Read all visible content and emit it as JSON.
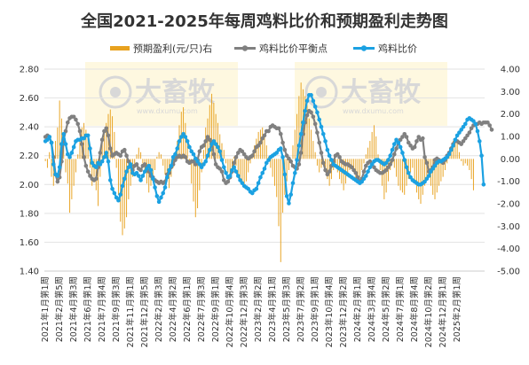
{
  "chart_data": {
    "type": "bar+line",
    "title": "全国2021-2025年每周鸡料比价和预期盈利走势图",
    "legend": {
      "placement": "top",
      "items": [
        {
          "name": "预期盈利(元/只)右",
          "kind": "bar",
          "color": "#E8A21F"
        },
        {
          "name": "鸡料比价平衡点",
          "kind": "line-marker",
          "color": "#808080"
        },
        {
          "name": "鸡料比价",
          "kind": "line-marker",
          "color": "#1BA1E2"
        }
      ]
    },
    "watermark": {
      "brand": "大畜牧",
      "url": "www.dxumu.com"
    },
    "y_left": {
      "min": 1.4,
      "max": 2.8,
      "step": 0.2,
      "ticks": [
        "1.40",
        "1.60",
        "1.80",
        "2.00",
        "2.20",
        "2.40",
        "2.60",
        "2.80"
      ]
    },
    "y_right": {
      "min": -5.0,
      "max": 4.0,
      "step": 1.0,
      "ticks": [
        "-5.00",
        "-4.00",
        "-3.00",
        "-2.00",
        "-1.00",
        "0.00",
        "1.00",
        "2.00",
        "3.00",
        "4.00"
      ]
    },
    "x_tick_labels": [
      "2021年1月第1周",
      "2021年2月第5周",
      "2021年4月第3周",
      "2021年6月第1周",
      "2021年7月第4周",
      "2021年9月第3周",
      "2021年11月第1周",
      "2021年12月第5周",
      "2022年2月第3周",
      "2022年4月第2周",
      "2022年6月第1周",
      "2022年7月第3周",
      "2022年9月第1周",
      "2022年10月第4周",
      "2022年12月第3周",
      "2023年2月第2周",
      "2023年4月第1周",
      "2023年5月第3周",
      "2023年7月第2周",
      "2023年9月第1周",
      "2023年10月第4周",
      "2023年12月第2周",
      "2024年2月第1周",
      "2024年3月第4周",
      "2024年5月第2周",
      "2024年7月第1周",
      "2024年8月第4周",
      "2024年10月第2周",
      "2024年12月第1周",
      "2025年2月第1周"
    ],
    "x_tick_interval": 7,
    "series": [
      {
        "name": "预期盈利(元/只)右",
        "axis": "right",
        "values": [
          -0.1,
          -0.4,
          0.3,
          -0.8,
          -1.2,
          0.8,
          1.4,
          2.6,
          1.8,
          0.6,
          -0.6,
          -1.1,
          -2.4,
          -1.8,
          -1.2,
          -0.6,
          0.2,
          0.9,
          1.4,
          1.6,
          1.3,
          0.9,
          -0.4,
          -1.2,
          -0.8,
          -1.4,
          -2.1,
          -0.8,
          0.9,
          1.3,
          1.6,
          2.0,
          2.2,
          1.9,
          1.2,
          -0.4,
          -1.6,
          -2.8,
          -3.4,
          -3.1,
          -2.6,
          -1.8,
          -1.2,
          -0.8,
          -0.4,
          0.2,
          0.5,
          0.3,
          -0.2,
          -0.6,
          -1.1,
          -1.5,
          -1.2,
          -0.9,
          -0.5,
          0.1,
          0.3,
          0.2,
          -0.3,
          -0.7,
          -1.0,
          -1.3,
          -0.8,
          -0.4,
          0.2,
          0.8,
          1.5,
          2.1,
          2.3,
          1.6,
          0.9,
          -0.2,
          -1.1,
          -1.9,
          -2.6,
          -2.2,
          -1.4,
          -0.6,
          0.4,
          1.4,
          1.8,
          2.4,
          2.9,
          2.5,
          2.0,
          1.6,
          1.1,
          0.7,
          0.4,
          -0.2,
          -0.6,
          -0.8,
          -0.4,
          0.1,
          -0.3,
          -0.7,
          -0.9,
          -1.1,
          -1.3,
          -1.0,
          -0.6,
          -0.2,
          0.2,
          0.6,
          0.9,
          1.2,
          1.3,
          1.4,
          1.1,
          0.6,
          0.1,
          -0.4,
          -0.8,
          -1.2,
          -1.7,
          -3.0,
          -4.6,
          -2.4,
          -1.6,
          -1.0,
          -0.5,
          0.0,
          0.6,
          1.3,
          2.0,
          2.8,
          3.4,
          3.1,
          2.8,
          2.4,
          1.8,
          1.3,
          0.8,
          0.3,
          -0.3,
          -0.6,
          -0.4,
          -0.2,
          -0.6,
          -0.9,
          -1.2,
          -0.9,
          -0.5,
          -0.2,
          -0.6,
          -0.9,
          -1.1,
          -1.4,
          -1.1,
          -0.8,
          -0.5,
          -0.3,
          -0.6,
          -0.9,
          -1.0,
          -0.8,
          -0.5,
          -0.2,
          0.2,
          0.5,
          0.8,
          1.2,
          1.5,
          1.0,
          0.2,
          -0.5,
          -1.2,
          -1.8,
          -1.5,
          -1.0,
          -0.5,
          -0.2,
          -0.4,
          -0.8,
          -1.2,
          -1.4,
          -1.5,
          -1.6,
          -1.2,
          -0.9,
          -0.6,
          -0.4,
          -1.0,
          -1.5,
          -1.8,
          -2.0,
          -1.6,
          -1.2,
          -0.9,
          -0.7,
          -1.2,
          -1.6,
          -1.8,
          -1.5,
          -1.2,
          -1.0,
          -0.8,
          -0.5,
          -0.2,
          0.2,
          0.5,
          0.8,
          0.9,
          0.7,
          0.3,
          -0.1,
          -0.3,
          -0.2,
          -0.3,
          -0.5,
          -0.9,
          -1.4
        ],
        "color": "#E8A21F"
      },
      {
        "name": "鸡料比价平衡点",
        "axis": "left",
        "values": [
          2.33,
          2.34,
          2.33,
          2.29,
          2.19,
          2.07,
          2.02,
          2.05,
          2.16,
          2.31,
          2.37,
          2.43,
          2.46,
          2.47,
          2.47,
          2.45,
          2.42,
          2.37,
          2.28,
          2.19,
          2.13,
          2.09,
          2.06,
          2.04,
          2.03,
          2.04,
          2.12,
          2.22,
          2.31,
          2.37,
          2.39,
          2.34,
          2.25,
          2.2,
          2.21,
          2.22,
          2.21,
          2.2,
          2.23,
          2.24,
          2.2,
          2.16,
          2.13,
          2.1,
          2.13,
          2.14,
          2.11,
          2.1,
          2.13,
          2.14,
          2.12,
          2.09,
          2.06,
          2.05,
          2.03,
          2.02,
          2.01,
          2.02,
          2.01,
          2.02,
          2.07,
          2.08,
          2.12,
          2.14,
          2.17,
          2.19,
          2.2,
          2.19,
          2.2,
          2.19,
          2.16,
          2.15,
          2.16,
          2.16,
          2.14,
          2.17,
          2.23,
          2.26,
          2.27,
          2.3,
          2.33,
          2.31,
          2.29,
          2.21,
          2.14,
          2.12,
          2.11,
          2.09,
          2.03,
          2.01,
          2.02,
          2.05,
          2.09,
          2.15,
          2.19,
          2.22,
          2.24,
          2.23,
          2.21,
          2.19,
          2.18,
          2.19,
          2.2,
          2.23,
          2.26,
          2.27,
          2.29,
          2.32,
          2.34,
          2.37,
          2.37,
          2.4,
          2.41,
          2.4,
          2.39,
          2.39,
          2.35,
          2.29,
          2.24,
          2.2,
          2.18,
          2.16,
          2.13,
          2.12,
          2.11,
          2.14,
          2.22,
          2.35,
          2.43,
          2.48,
          2.51,
          2.5,
          2.47,
          2.42,
          2.36,
          2.29,
          2.22,
          2.15,
          2.1,
          2.07,
          2.09,
          2.13,
          2.16,
          2.2,
          2.21,
          2.19,
          2.16,
          2.15,
          2.14,
          2.14,
          2.13,
          2.12,
          2.1,
          2.08,
          2.05,
          2.02,
          2.04,
          2.09,
          2.13,
          2.15,
          2.16,
          2.14,
          2.12,
          2.1,
          2.09,
          2.08,
          2.08,
          2.09,
          2.1,
          2.12,
          2.14,
          2.17,
          2.21,
          2.25,
          2.29,
          2.31,
          2.33,
          2.35,
          2.33,
          2.29,
          2.27,
          2.25,
          2.26,
          2.3,
          2.33,
          2.31,
          2.32,
          2.19,
          2.15,
          2.09,
          2.1,
          2.12,
          2.17,
          2.18,
          2.17,
          2.16,
          2.15,
          2.17,
          2.2,
          2.22,
          2.25,
          2.28,
          2.3,
          2.3,
          2.29,
          2.28,
          2.3,
          2.32,
          2.34,
          2.36,
          2.39,
          2.41,
          2.42,
          2.42,
          2.43,
          2.42,
          2.43,
          2.43,
          2.43,
          2.41,
          2.38
        ],
        "color": "#808080"
      },
      {
        "name": "鸡料比价",
        "axis": "left",
        "values": [
          2.3,
          2.31,
          2.33,
          2.29,
          2.14,
          2.07,
          2.06,
          2.12,
          2.28,
          2.35,
          2.28,
          2.21,
          2.19,
          2.22,
          2.26,
          2.3,
          2.31,
          2.31,
          2.32,
          2.32,
          2.34,
          2.34,
          2.25,
          2.15,
          2.13,
          2.12,
          2.15,
          2.14,
          2.16,
          2.19,
          2.22,
          2.16,
          2.03,
          1.97,
          1.94,
          1.91,
          1.89,
          1.93,
          1.99,
          2.04,
          2.09,
          2.12,
          2.14,
          2.08,
          2.07,
          2.08,
          2.06,
          2.03,
          2.06,
          2.09,
          2.11,
          2.13,
          2.1,
          2.04,
          1.98,
          1.92,
          1.88,
          1.91,
          1.94,
          1.98,
          2.05,
          2.1,
          2.13,
          2.19,
          2.21,
          2.25,
          2.3,
          2.33,
          2.35,
          2.33,
          2.3,
          2.26,
          2.23,
          2.21,
          2.18,
          2.16,
          2.14,
          2.12,
          2.14,
          2.16,
          2.2,
          2.24,
          2.28,
          2.3,
          2.28,
          2.26,
          2.23,
          2.17,
          2.12,
          2.08,
          2.05,
          2.06,
          2.1,
          2.12,
          2.09,
          2.06,
          2.03,
          2.01,
          1.99,
          1.98,
          1.97,
          1.95,
          1.94,
          1.96,
          1.97,
          2.01,
          2.05,
          2.08,
          2.11,
          2.15,
          2.17,
          2.19,
          2.2,
          2.21,
          2.22,
          2.24,
          2.25,
          2.19,
          2.07,
          1.92,
          1.87,
          1.93,
          2.01,
          2.08,
          2.17,
          2.27,
          2.35,
          2.43,
          2.51,
          2.58,
          2.62,
          2.62,
          2.58,
          2.54,
          2.5,
          2.45,
          2.4,
          2.35,
          2.3,
          2.24,
          2.2,
          2.17,
          2.14,
          2.13,
          2.12,
          2.11,
          2.1,
          2.09,
          2.08,
          2.07,
          2.06,
          2.05,
          2.04,
          2.03,
          2.02,
          2.01,
          2.02,
          2.04,
          2.06,
          2.09,
          2.12,
          2.14,
          2.16,
          2.17,
          2.17,
          2.16,
          2.15,
          2.14,
          2.15,
          2.17,
          2.2,
          2.24,
          2.28,
          2.31,
          2.29,
          2.26,
          2.22,
          2.17,
          2.12,
          2.08,
          2.05,
          2.03,
          2.02,
          2.01,
          2.0,
          2.0,
          2.01,
          2.02,
          2.04,
          2.06,
          2.09,
          2.11,
          2.13,
          2.15,
          2.16,
          2.16,
          2.17,
          2.18,
          2.19,
          2.21,
          2.24,
          2.27,
          2.31,
          2.34,
          2.36,
          2.38,
          2.4,
          2.42,
          2.45,
          2.46,
          2.45,
          2.44,
          2.42,
          2.37,
          2.3,
          2.2,
          2.0
        ],
        "color": "#1BA1E2"
      }
    ]
  }
}
